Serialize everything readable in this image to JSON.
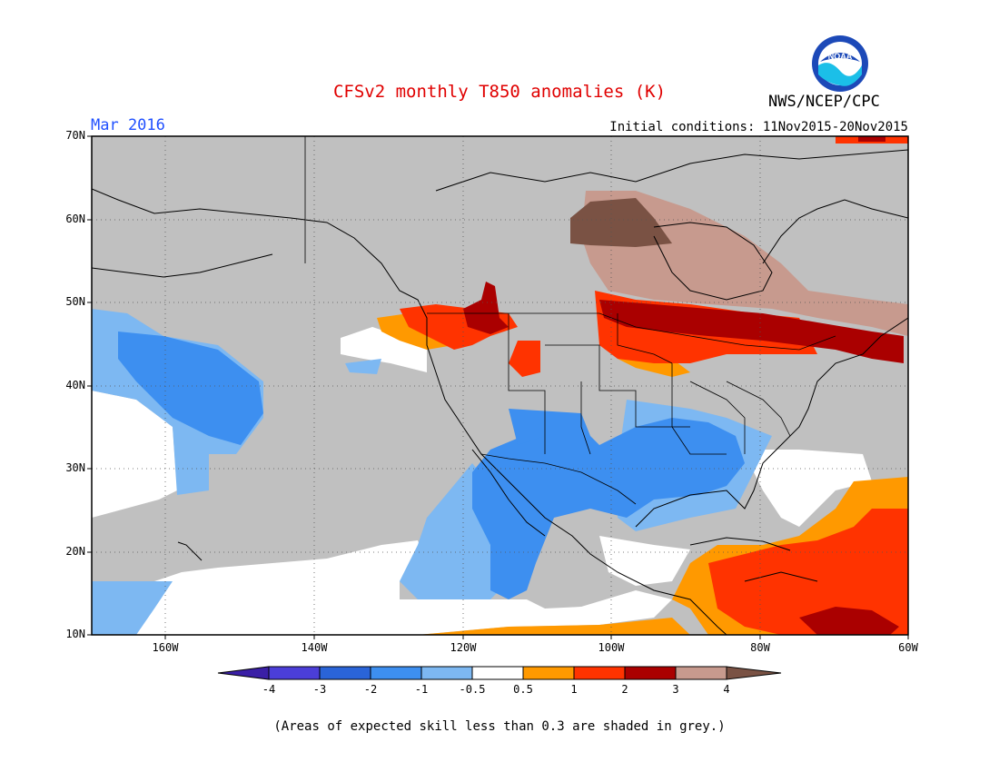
{
  "header": {
    "title": "CFSv2 monthly T850 anomalies (K)",
    "agency": "NWS/NCEP/CPC",
    "logo_text": "NOAA",
    "target_month": "Mar 2016",
    "initial_conditions": "Initial conditions: 11Nov2015-20Nov2015"
  },
  "map": {
    "lon_range": [
      -172,
      -60
    ],
    "lat_range": [
      10,
      70
    ],
    "lat_labels": [
      "70N",
      "60N",
      "50N",
      "40N",
      "30N",
      "20N",
      "10N"
    ],
    "lon_labels": [
      "160W",
      "140W",
      "120W",
      "100W",
      "80W",
      "60W"
    ],
    "grid": "dotted",
    "grey_meaning": "low skill"
  },
  "colorbar": {
    "labels": [
      "-4",
      "-3",
      "-2",
      "-1",
      "-0.5",
      "0.5",
      "1",
      "2",
      "3",
      "4"
    ],
    "colors": [
      "#3a1fa6",
      "#4b3ed8",
      "#2a64d8",
      "#3d8ff0",
      "#7db8f2",
      "#ffffff",
      "#ff9900",
      "#ff3300",
      "#aa0000",
      "#c79a8e",
      "#7a5244"
    ]
  },
  "footnote": "(Areas of expected skill less than 0.3 are shaded in grey.)"
}
